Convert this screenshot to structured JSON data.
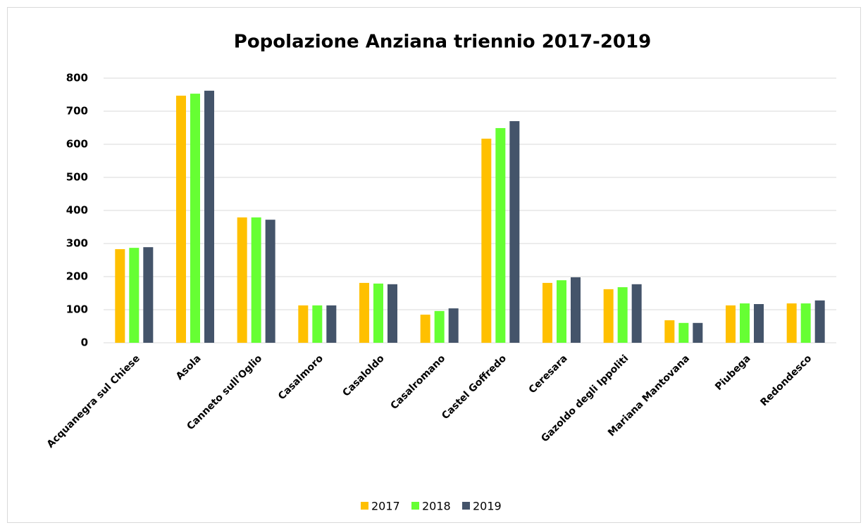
{
  "chart_data": {
    "type": "bar",
    "title": "Popolazione Anziana triennio 2017-2019",
    "categories": [
      "Acquanegra sul Chiese",
      "Asola",
      "Canneto sull'Oglio",
      "Casalmoro",
      "Casaloldo",
      "Casalromano",
      "Castel Goffredo",
      "Ceresara",
      "Gazoldo degli Ippoliti",
      "Mariana Mantovana",
      "Piubega",
      "Redondesco"
    ],
    "series": [
      {
        "name": "2017",
        "color": "#ffc000",
        "values": [
          283,
          747,
          379,
          113,
          181,
          85,
          617,
          181,
          162,
          68,
          113,
          119
        ]
      },
      {
        "name": "2018",
        "color": "#66ff33",
        "values": [
          287,
          753,
          379,
          113,
          179,
          96,
          649,
          189,
          168,
          60,
          119,
          119
        ]
      },
      {
        "name": "2019",
        "color": "#44546a",
        "values": [
          289,
          762,
          372,
          113,
          177,
          104,
          670,
          198,
          177,
          60,
          117,
          128
        ]
      }
    ],
    "ylim": [
      0,
      800
    ],
    "yticks": [
      0,
      100,
      200,
      300,
      400,
      500,
      600,
      700,
      800
    ],
    "grid": true,
    "legend": "bottom"
  }
}
